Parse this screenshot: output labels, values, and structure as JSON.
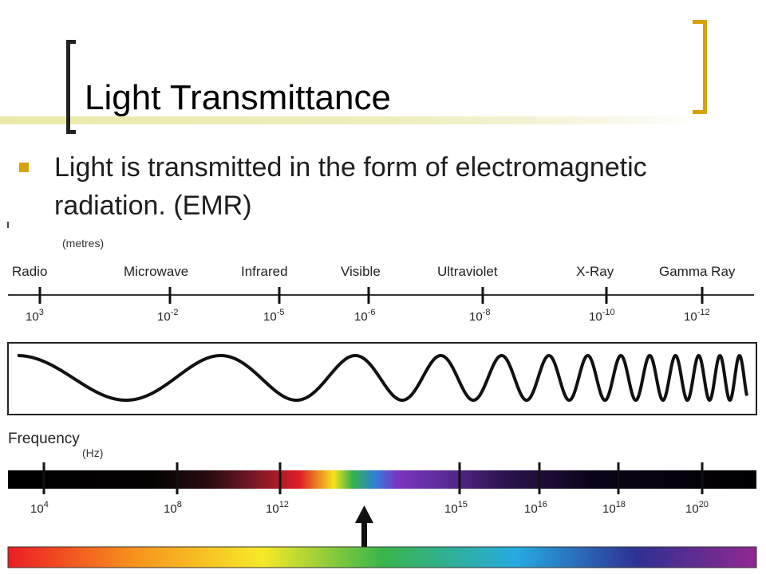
{
  "slide": {
    "title": "Light Transmittance",
    "bullet": "Light is transmitted in the form of electromagnetic radiation. (EMR)"
  },
  "colors": {
    "bracket_left": "#222222",
    "bracket_right": "#d8a10c",
    "bullet_marker": "#d8a10c",
    "title_rule": "#ece9a8"
  },
  "spectrum": {
    "wavelength_unit": "(metres)",
    "bands": [
      "Radio",
      "Microwave",
      "Infrared",
      "Visible",
      "Ultraviolet",
      "X-Ray",
      "Gamma Ray"
    ],
    "wavelength_ticks": [
      {
        "base": "10",
        "exp": "3"
      },
      {
        "base": "10",
        "exp": "-2"
      },
      {
        "base": "10",
        "exp": "-5"
      },
      {
        "base": "10",
        "exp": "-6"
      },
      {
        "base": "10",
        "exp": "-8"
      },
      {
        "base": "10",
        "exp": "-10"
      },
      {
        "base": "10",
        "exp": "-12"
      }
    ],
    "frequency_title": "Frequency",
    "frequency_unit": "(Hz)",
    "frequency_ticks": [
      {
        "base": "10",
        "exp": "4"
      },
      {
        "base": "10",
        "exp": "8"
      },
      {
        "base": "10",
        "exp": "12"
      },
      {
        "base": "10",
        "exp": "15"
      },
      {
        "base": "10",
        "exp": "16"
      },
      {
        "base": "10",
        "exp": "18"
      },
      {
        "base": "10",
        "exp": "20"
      }
    ],
    "wave_icon": "sine-wave-increasing-frequency",
    "pointer_icon": "up-arrow-icon"
  }
}
